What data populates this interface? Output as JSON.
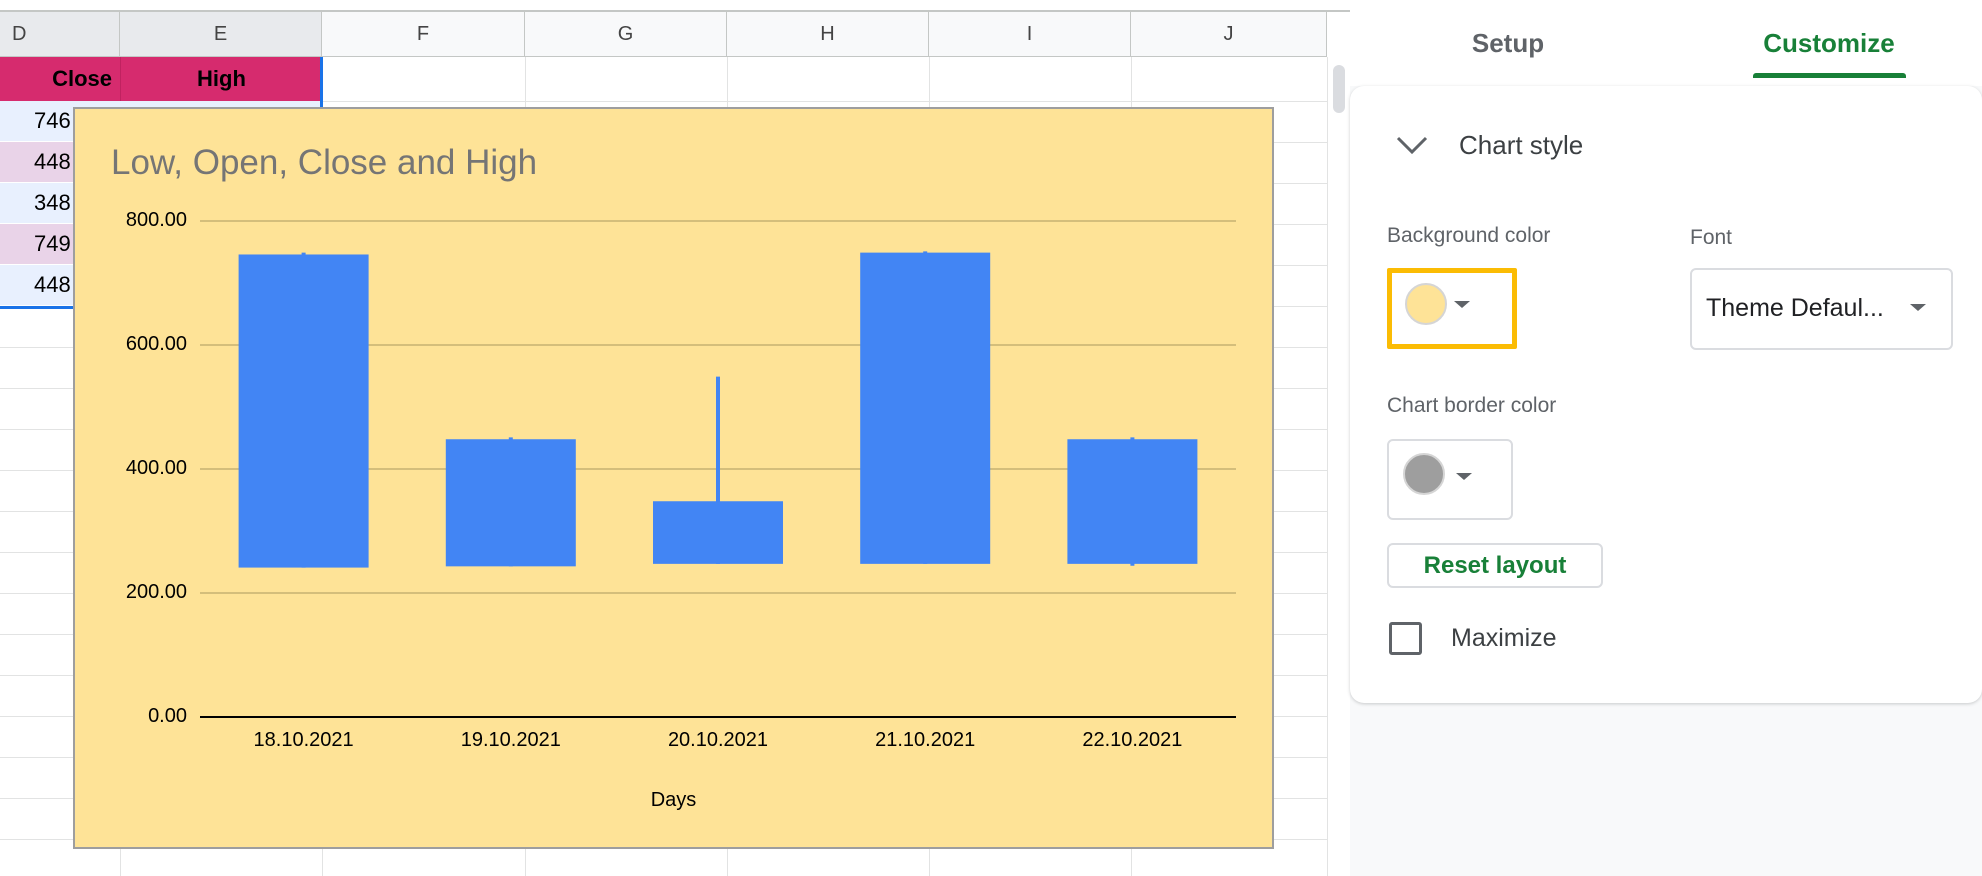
{
  "sheet": {
    "columns": [
      "D",
      "E",
      "F",
      "G",
      "H",
      "I",
      "J"
    ],
    "header_row": [
      "Close",
      "High"
    ],
    "close_values": [
      "746",
      "448",
      "348",
      "749",
      "448"
    ],
    "colors": {
      "header": "#d62b6e",
      "row_even": "#e8f0fe",
      "row_odd": "#e9d3e8",
      "selection": "#1a73e8"
    }
  },
  "chart_data": {
    "type": "candlestick",
    "title": "Low, Open, Close and High",
    "xlabel": "Days",
    "ylabel": "",
    "ylim": [
      0,
      800
    ],
    "yticks": [
      "0.00",
      "200.00",
      "400.00",
      "600.00",
      "800.00"
    ],
    "ytick_values": [
      0,
      200,
      400,
      600,
      800
    ],
    "grid": true,
    "categories": [
      "18.10.2021",
      "19.10.2021",
      "20.10.2021",
      "21.10.2021",
      "22.10.2021"
    ],
    "low": [
      241,
      243,
      247,
      247,
      244
    ],
    "open": [
      241,
      243,
      247,
      247,
      247
    ],
    "close": [
      746,
      448,
      348,
      749,
      448
    ],
    "high": [
      749,
      451,
      549,
      751,
      451
    ],
    "background_color": "#fee397",
    "series_color": "#4285f4"
  },
  "panel": {
    "tabs": [
      {
        "label": "Setup",
        "active": false
      },
      {
        "label": "Customize",
        "active": true
      }
    ],
    "section_title": "Chart style",
    "section_icon": "chevron-down-icon",
    "background_color_label": "Background color",
    "background_color_value": "#fee397",
    "font_label": "Font",
    "font_value": "Theme Defaul...",
    "border_color_label": "Chart border color",
    "border_color_value": "#9e9e9e",
    "reset_label": "Reset layout",
    "maximize_label": "Maximize",
    "maximize_checked": false,
    "accent": "#188038",
    "highlight": "#fbbc04"
  }
}
